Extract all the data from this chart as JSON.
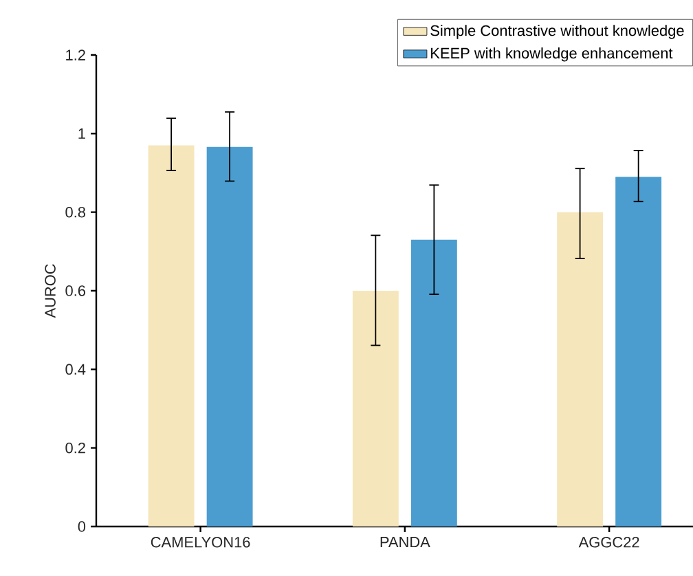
{
  "chart_data": {
    "type": "bar",
    "ylabel": "AUROC",
    "categories": [
      "CAMELYON16",
      "PANDA",
      "AGGC22"
    ],
    "series": [
      {
        "name": "Simple Contrastive without knowledge",
        "color": "#f6e6bb",
        "values": [
          0.97,
          0.6,
          0.8
        ],
        "errors": [
          [
            0.906,
            1.039
          ],
          [
            0.461,
            0.741
          ],
          [
            0.682,
            0.911
          ]
        ]
      },
      {
        "name": "KEEP with knowledge enhancement",
        "color": "#4b9dd0",
        "values": [
          0.966,
          0.73,
          0.89
        ],
        "errors": [
          [
            0.879,
            1.055
          ],
          [
            0.591,
            0.869
          ],
          [
            0.827,
            0.957
          ]
        ]
      }
    ],
    "ylim": [
      0,
      1.2
    ],
    "yticks": [
      0,
      0.2,
      0.4,
      0.6,
      0.8,
      1,
      1.2
    ],
    "grid": false,
    "legend": "top right"
  }
}
